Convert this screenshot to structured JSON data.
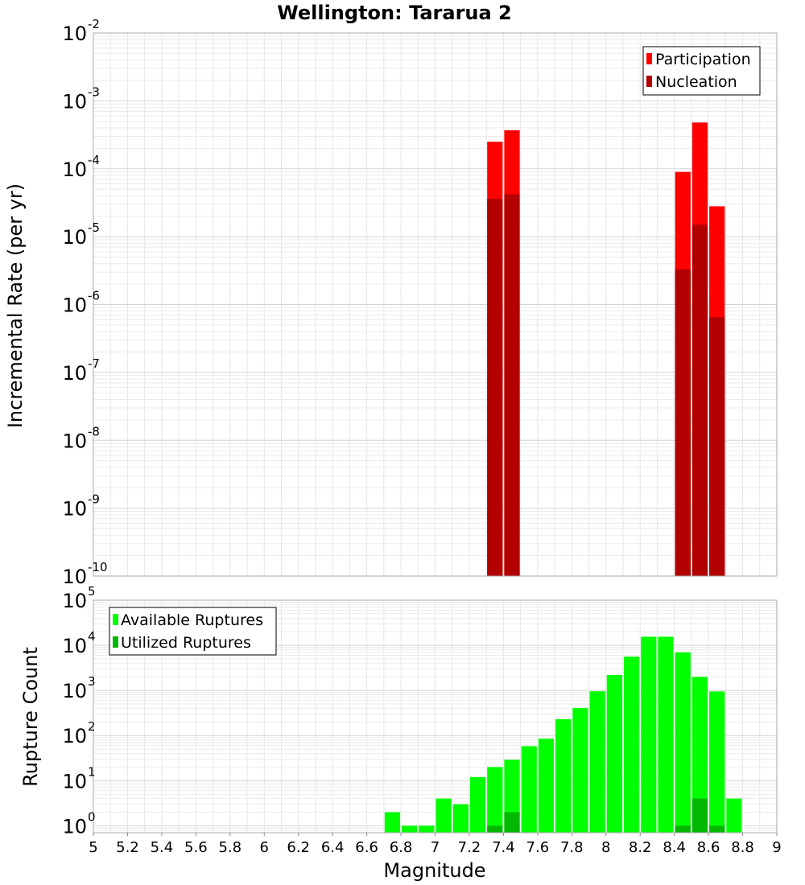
{
  "title": "Wellington: Tararua 2",
  "colors": {
    "participation": "#ff0000",
    "nucleation": "#b20000",
    "available": "#00ff00",
    "utilized": "#00b800"
  },
  "chart_data": [
    {
      "type": "bar",
      "title": "Wellington: Tararua 2",
      "xlabel": "Magnitude",
      "ylabel": "Incremental Rate (per yr)",
      "xlim": [
        5,
        9
      ],
      "ylim": [
        1e-10,
        0.01
      ],
      "yscale": "log",
      "bin_width": 0.1,
      "legend_position": "top-right",
      "y_ticks": [
        {
          "base": "10",
          "exp": "-10"
        },
        {
          "base": "10",
          "exp": "-9"
        },
        {
          "base": "10",
          "exp": "-8"
        },
        {
          "base": "10",
          "exp": "-7"
        },
        {
          "base": "10",
          "exp": "-6"
        },
        {
          "base": "10",
          "exp": "-5"
        },
        {
          "base": "10",
          "exp": "-4"
        },
        {
          "base": "10",
          "exp": "-3"
        },
        {
          "base": "10",
          "exp": "-2"
        }
      ],
      "x": [
        7.35,
        7.45,
        8.45,
        8.55,
        8.65
      ],
      "series": [
        {
          "name": "Participation",
          "values": [
            0.00025,
            0.00037,
            9e-05,
            0.00048,
            2.8e-05
          ]
        },
        {
          "name": "Nucleation",
          "values": [
            3.6e-05,
            4.2e-05,
            3.3e-06,
            1.5e-05,
            6.5e-07
          ]
        }
      ]
    },
    {
      "type": "bar",
      "xlabel": "Magnitude",
      "ylabel": "Rupture Count",
      "xlim": [
        5,
        9
      ],
      "ylim": [
        0.7,
        100000
      ],
      "yscale": "log",
      "bin_width": 0.1,
      "legend_position": "top-left",
      "x_ticks": [
        "5",
        "5.2",
        "5.4",
        "5.6",
        "5.8",
        "6",
        "6.2",
        "6.4",
        "6.6",
        "6.8",
        "7",
        "7.2",
        "7.4",
        "7.6",
        "7.8",
        "8",
        "8.2",
        "8.4",
        "8.6",
        "8.8",
        "9"
      ],
      "y_ticks": [
        {
          "base": "10",
          "exp": "0"
        },
        {
          "base": "10",
          "exp": "1"
        },
        {
          "base": "10",
          "exp": "2"
        },
        {
          "base": "10",
          "exp": "3"
        },
        {
          "base": "10",
          "exp": "4"
        },
        {
          "base": "10",
          "exp": "5"
        }
      ],
      "x": [
        6.75,
        6.85,
        6.95,
        7.05,
        7.15,
        7.25,
        7.35,
        7.45,
        7.55,
        7.65,
        7.75,
        7.85,
        7.95,
        8.05,
        8.15,
        8.25,
        8.35,
        8.45,
        8.55,
        8.65,
        8.75
      ],
      "series": [
        {
          "name": "Available Ruptures",
          "values": [
            2,
            1,
            1,
            4,
            3,
            12,
            20,
            29,
            58,
            85,
            230,
            410,
            960,
            2200,
            5600,
            15500,
            15500,
            7000,
            2000,
            950,
            4
          ]
        },
        {
          "name": "Utilized Ruptures",
          "values": [
            0,
            0,
            0,
            0,
            0,
            0,
            1,
            2,
            0,
            0,
            0,
            0,
            0,
            0,
            0,
            0,
            0,
            1,
            4,
            1,
            0
          ]
        }
      ]
    }
  ]
}
